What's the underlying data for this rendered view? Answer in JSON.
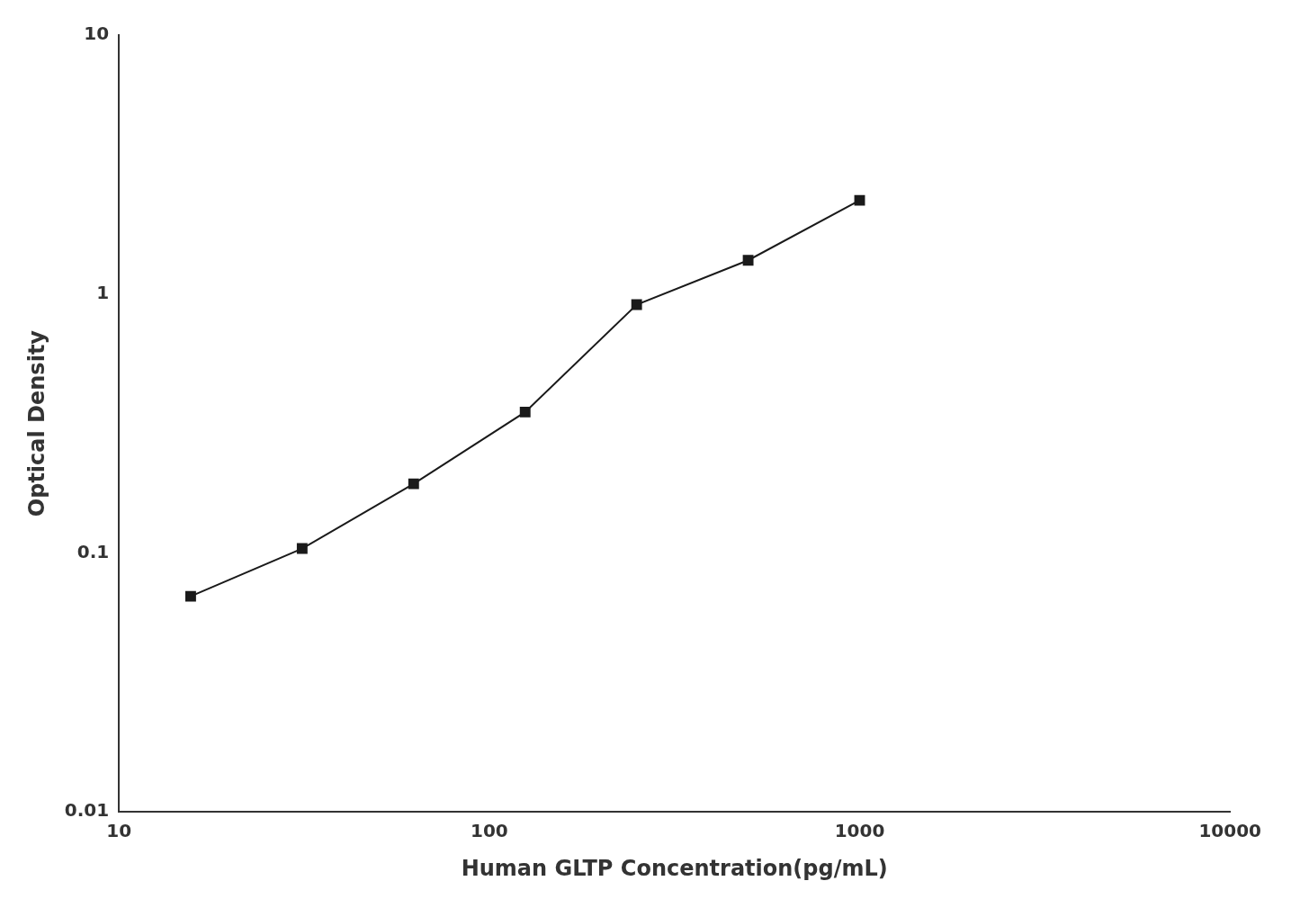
{
  "chart_data": {
    "type": "line",
    "x": [
      15.625,
      31.25,
      62.5,
      125,
      250,
      500,
      1000
    ],
    "values": [
      0.068,
      0.104,
      0.185,
      0.35,
      0.91,
      1.35,
      2.3
    ],
    "xlabel": "Human GLTP Concentration(pg/mL)",
    "ylabel": "Optical Density",
    "xlim": [
      10,
      10000
    ],
    "ylim": [
      0.01,
      10
    ],
    "xticks": [
      10,
      100,
      1000,
      10000
    ],
    "yticks": [
      0.01,
      0.1,
      1,
      10
    ],
    "log": true,
    "grid": false,
    "color": "#1a1a1a",
    "marker": "square",
    "line_style": "solid"
  }
}
